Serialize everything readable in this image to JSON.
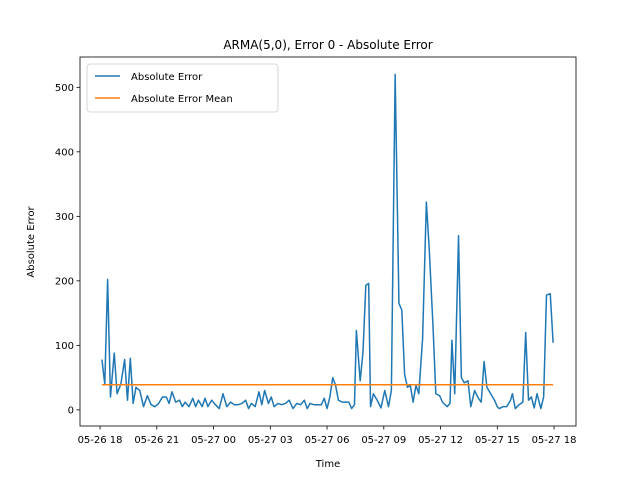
{
  "chart_data": {
    "type": "line",
    "title": "ARMA(5,0), Error 0 - Absolute Error",
    "xlabel": "Time",
    "ylabel": "Absolute Error",
    "xlim": [
      16.94,
      43.16
    ],
    "ylim": [
      -25,
      547
    ],
    "xticks": [
      {
        "value": 18,
        "label": "05-26 18"
      },
      {
        "value": 21,
        "label": "05-26 21"
      },
      {
        "value": 24,
        "label": "05-27 00"
      },
      {
        "value": 27,
        "label": "05-27 03"
      },
      {
        "value": 30,
        "label": "05-27 06"
      },
      {
        "value": 33,
        "label": "05-27 09"
      },
      {
        "value": 36,
        "label": "05-27 12"
      },
      {
        "value": 39,
        "label": "05-27 15"
      },
      {
        "value": 42,
        "label": "05-27 18"
      }
    ],
    "yticks": [
      0,
      100,
      200,
      300,
      400,
      500
    ],
    "legend": "upper left",
    "series": [
      {
        "name": "Absolute Error",
        "color": "#1f77b4",
        "x": [
          18.1,
          18.25,
          18.4,
          18.55,
          18.75,
          18.9,
          19.1,
          19.3,
          19.45,
          19.6,
          19.75,
          19.9,
          20.1,
          20.3,
          20.5,
          20.7,
          20.9,
          21.1,
          21.3,
          21.5,
          21.65,
          21.8,
          22.0,
          22.2,
          22.35,
          22.5,
          22.7,
          22.9,
          23.05,
          23.2,
          23.4,
          23.55,
          23.7,
          23.9,
          24.1,
          24.3,
          24.5,
          24.7,
          24.9,
          25.1,
          25.3,
          25.5,
          25.7,
          25.85,
          26.0,
          26.2,
          26.4,
          26.55,
          26.7,
          26.9,
          27.05,
          27.2,
          27.4,
          27.6,
          27.8,
          28.0,
          28.2,
          28.4,
          28.6,
          28.8,
          28.95,
          29.1,
          29.3,
          29.5,
          29.7,
          29.85,
          30.0,
          30.15,
          30.3,
          30.45,
          30.6,
          30.8,
          31.0,
          31.15,
          31.3,
          31.45,
          31.55,
          31.75,
          31.9,
          32.05,
          32.2,
          32.3,
          32.45,
          32.65,
          32.85,
          33.05,
          33.25,
          33.4,
          33.6,
          33.8,
          33.95,
          34.1,
          34.25,
          34.4,
          34.55,
          34.7,
          34.85,
          35.05,
          35.25,
          35.4,
          35.6,
          35.75,
          35.95,
          36.1,
          36.35,
          36.5,
          36.6,
          36.75,
          36.95,
          37.1,
          37.25,
          37.45,
          37.6,
          37.8,
          38.0,
          38.15,
          38.3,
          38.45,
          38.65,
          38.85,
          39.0,
          39.1,
          39.3,
          39.5,
          39.7,
          39.8,
          39.95,
          40.15,
          40.35,
          40.5,
          40.65,
          40.8,
          40.95,
          41.1,
          41.3,
          41.45,
          41.6,
          41.8,
          41.95
        ],
        "values": [
          78,
          40,
          202,
          20,
          88,
          25,
          40,
          78,
          15,
          80,
          10,
          35,
          30,
          5,
          22,
          8,
          5,
          10,
          20,
          20,
          10,
          28,
          12,
          15,
          5,
          12,
          5,
          18,
          5,
          15,
          5,
          18,
          5,
          15,
          8,
          2,
          25,
          5,
          12,
          8,
          8,
          10,
          15,
          2,
          10,
          5,
          28,
          8,
          30,
          10,
          20,
          5,
          10,
          8,
          10,
          15,
          2,
          10,
          8,
          15,
          2,
          10,
          8,
          8,
          8,
          18,
          2,
          20,
          50,
          38,
          15,
          12,
          12,
          12,
          2,
          8,
          123,
          45,
          90,
          193,
          196,
          5,
          25,
          15,
          3,
          30,
          5,
          30,
          520,
          165,
          155,
          55,
          35,
          38,
          12,
          38,
          25,
          110,
          322,
          250,
          130,
          25,
          22,
          12,
          5,
          10,
          108,
          25,
          270,
          50,
          42,
          45,
          5,
          30,
          18,
          12,
          75,
          35,
          25,
          15,
          5,
          2,
          5,
          5,
          15,
          25,
          2,
          8,
          12,
          120,
          15,
          20,
          3,
          25,
          2,
          20,
          178,
          180,
          104
        ]
      },
      {
        "name": "Absolute Error Mean",
        "color": "#ff7f0e",
        "x": [
          18.1,
          41.95
        ],
        "values": [
          39,
          39
        ]
      }
    ]
  }
}
